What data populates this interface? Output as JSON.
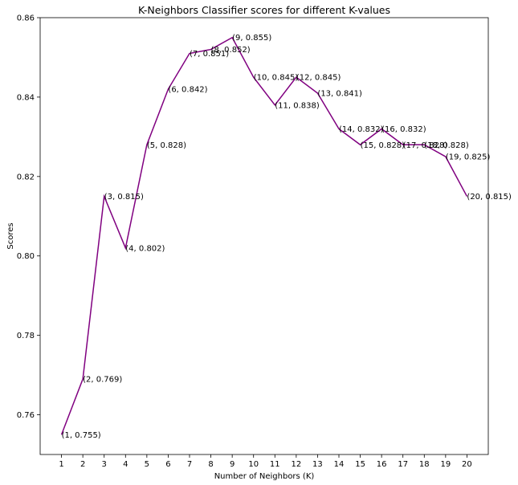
{
  "chart_data": {
    "type": "line",
    "title": "K-Neighbors Classifier scores for different K-values",
    "xlabel": "Number of Neighbors (K)",
    "ylabel": "Scores",
    "x": [
      1,
      2,
      3,
      4,
      5,
      6,
      7,
      8,
      9,
      10,
      11,
      12,
      13,
      14,
      15,
      16,
      17,
      18,
      19,
      20
    ],
    "values": [
      0.755,
      0.769,
      0.815,
      0.802,
      0.828,
      0.842,
      0.851,
      0.852,
      0.855,
      0.845,
      0.838,
      0.845,
      0.841,
      0.832,
      0.828,
      0.832,
      0.828,
      0.828,
      0.825,
      0.815
    ],
    "point_labels": [
      "(1, 0.755)",
      "(2, 0.769)",
      "(3, 0.815)",
      "(4, 0.802)",
      "(5, 0.828)",
      "(6, 0.842)",
      "(7, 0.851)",
      "(8, 0.852)",
      "(9, 0.855)",
      "(10, 0.845)",
      "(11, 0.838)",
      "(12, 0.845)",
      "(13, 0.841)",
      "(14, 0.832)",
      "(15, 0.828)",
      "(16, 0.832)",
      "(17, 0.828)",
      "(18, 0.828)",
      "(19, 0.825)",
      "(20, 0.815)"
    ],
    "xlim": [
      0,
      21
    ],
    "ylim": [
      0.75,
      0.86
    ],
    "xticks": [
      "1",
      "2",
      "3",
      "4",
      "5",
      "6",
      "7",
      "8",
      "9",
      "10",
      "11",
      "12",
      "13",
      "14",
      "15",
      "16",
      "17",
      "18",
      "19",
      "20"
    ],
    "yticks": [
      "0.76",
      "0.78",
      "0.80",
      "0.82",
      "0.84",
      "0.86"
    ],
    "line_color": "#800080",
    "grid": false
  }
}
